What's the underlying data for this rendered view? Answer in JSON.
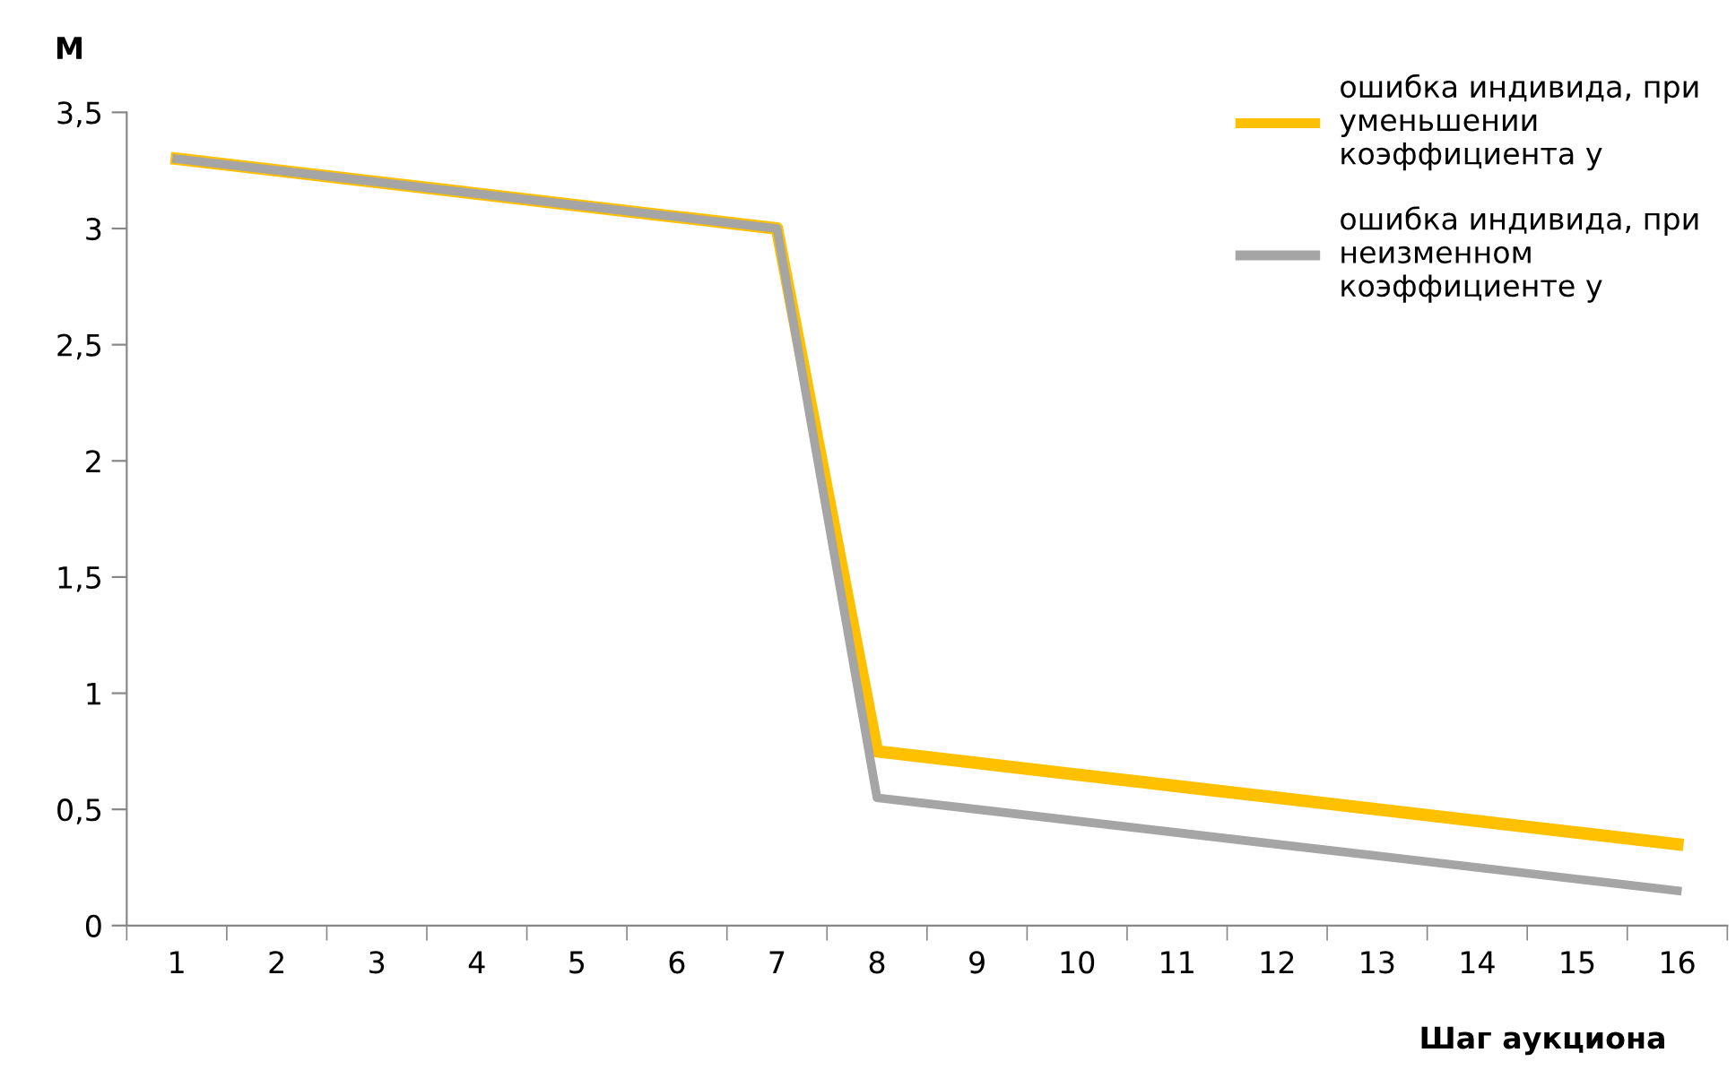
{
  "chart_data": {
    "type": "line",
    "ylabel": "М",
    "xlabel": "Шаг аукциона",
    "categories": [
      "1",
      "2",
      "3",
      "4",
      "5",
      "6",
      "7",
      "8",
      "9",
      "10",
      "11",
      "12",
      "13",
      "14",
      "15",
      "16"
    ],
    "series": [
      {
        "name": "ошибка индивида, при уменьшении коэффициента y",
        "color": "#ffc000",
        "values": [
          3.3,
          3.25,
          3.2,
          3.15,
          3.1,
          3.05,
          3.0,
          0.75,
          0.7,
          0.65,
          0.6,
          0.55,
          0.5,
          0.45,
          0.4,
          0.35
        ]
      },
      {
        "name": "ошибка индивида, при неизменном коэффициенте y",
        "color": "#a5a5a5",
        "values": [
          3.3,
          3.25,
          3.2,
          3.15,
          3.1,
          3.05,
          3.0,
          0.55,
          0.5,
          0.45,
          0.4,
          0.35,
          0.3,
          0.25,
          0.2,
          0.15
        ]
      }
    ],
    "ylim": [
      0,
      3.5
    ],
    "yticks": [
      {
        "value": 0,
        "label": "0"
      },
      {
        "value": 0.5,
        "label": "0,5"
      },
      {
        "value": 1,
        "label": "1"
      },
      {
        "value": 1.5,
        "label": "1,5"
      },
      {
        "value": 2,
        "label": "2"
      },
      {
        "value": 2.5,
        "label": "2,5"
      },
      {
        "value": 3,
        "label": "3"
      },
      {
        "value": 3.5,
        "label": "3,5"
      }
    ],
    "grid": false,
    "legend": "top right",
    "marker": "none",
    "line_style": "solid"
  }
}
